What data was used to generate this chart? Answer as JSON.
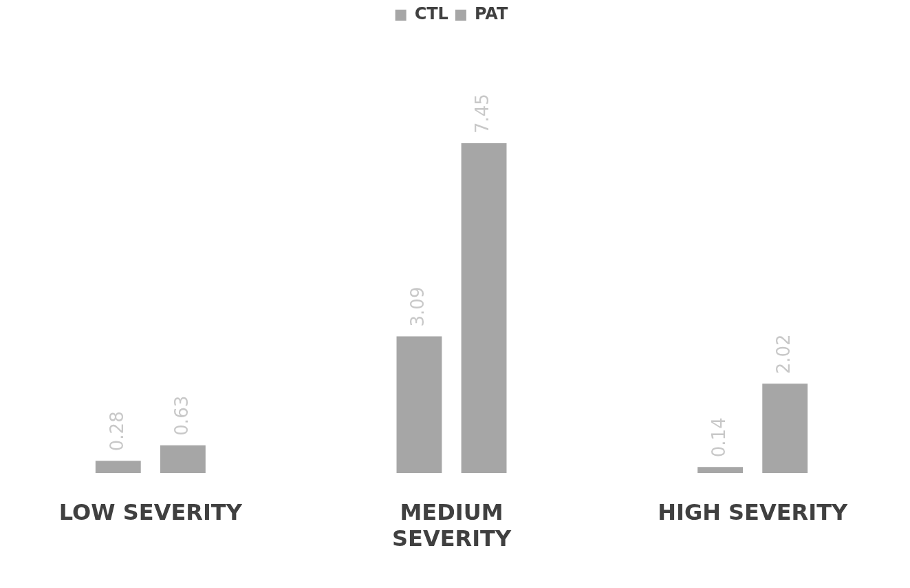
{
  "chart_data": {
    "type": "bar",
    "categories": [
      "LOW SEVERITY",
      "MEDIUM SEVERITY",
      "HIGH SEVERITY"
    ],
    "series": [
      {
        "name": "CTL",
        "color": "#a6a6a6",
        "values": [
          0.28,
          3.09,
          0.14
        ]
      },
      {
        "name": "PAT",
        "color": "#a6a6a6",
        "values": [
          0.63,
          7.45,
          2.02
        ]
      }
    ],
    "data_labels": true,
    "legend": "top",
    "grid": false,
    "tick_labels": "x"
  }
}
